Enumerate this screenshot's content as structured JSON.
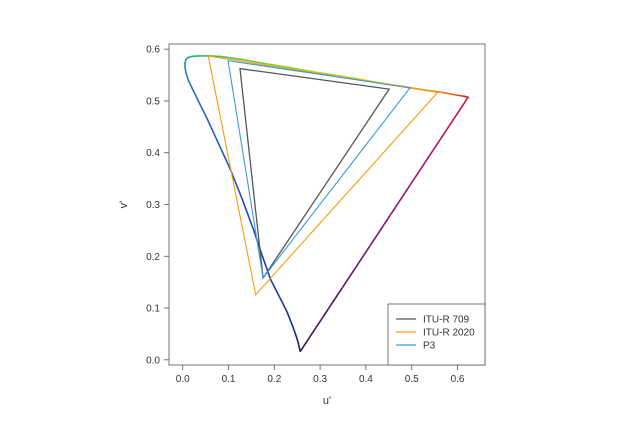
{
  "chart_data": {
    "type": "line",
    "xlabel": "u'",
    "ylabel": "v'",
    "xlim": [
      -0.03,
      0.66
    ],
    "ylim": [
      -0.01,
      0.61
    ],
    "xticks": [
      "0.0",
      "0.1",
      "0.2",
      "0.3",
      "0.4",
      "0.5",
      "0.6"
    ],
    "yticks": [
      "0.0",
      "0.1",
      "0.2",
      "0.3",
      "0.4",
      "0.5",
      "0.6"
    ],
    "grid": false,
    "legend_position": "bottom-right",
    "spectral_locus": {
      "u": [
        0.2568,
        0.2557,
        0.2541,
        0.2525,
        0.248,
        0.24,
        0.228,
        0.215,
        0.192,
        0.174,
        0.1551,
        0.13,
        0.103,
        0.0744,
        0.051,
        0.034,
        0.0203,
        0.0122,
        0.007,
        0.005,
        0.0048,
        0.007,
        0.0117,
        0.02,
        0.0355,
        0.057,
        0.082,
        0.13,
        0.18,
        0.23,
        0.28,
        0.33,
        0.38,
        0.43,
        0.48,
        0.53,
        0.57,
        0.6,
        0.615,
        0.623
      ],
      "v": [
        0.0165,
        0.02,
        0.025,
        0.032,
        0.045,
        0.065,
        0.092,
        0.115,
        0.155,
        0.2,
        0.25,
        0.31,
        0.37,
        0.425,
        0.47,
        0.5,
        0.525,
        0.54,
        0.555,
        0.565,
        0.573,
        0.58,
        0.584,
        0.586,
        0.587,
        0.587,
        0.586,
        0.58,
        0.572,
        0.565,
        0.557,
        0.55,
        0.543,
        0.535,
        0.528,
        0.521,
        0.516,
        0.511,
        0.509,
        0.507
      ]
    },
    "purple_line": {
      "u": [
        0.623,
        0.2568
      ],
      "v": [
        0.507,
        0.0165
      ]
    },
    "series": [
      {
        "name": "ITU-R 709",
        "color": "#555555",
        "u": [
          0.4507,
          0.125,
          0.1754
        ],
        "v": [
          0.5229,
          0.5625,
          0.1579
        ]
      },
      {
        "name": "ITU-R 2020",
        "color": "#F39C12",
        "u": [
          0.5566,
          0.0557,
          0.1593
        ],
        "v": [
          0.5165,
          0.5868,
          0.1258
        ]
      },
      {
        "name": "P3",
        "color": "#3A9AD9",
        "u": [
          0.4964,
          0.099,
          0.1754
        ],
        "v": [
          0.5255,
          0.5777,
          0.1579
        ]
      }
    ]
  }
}
